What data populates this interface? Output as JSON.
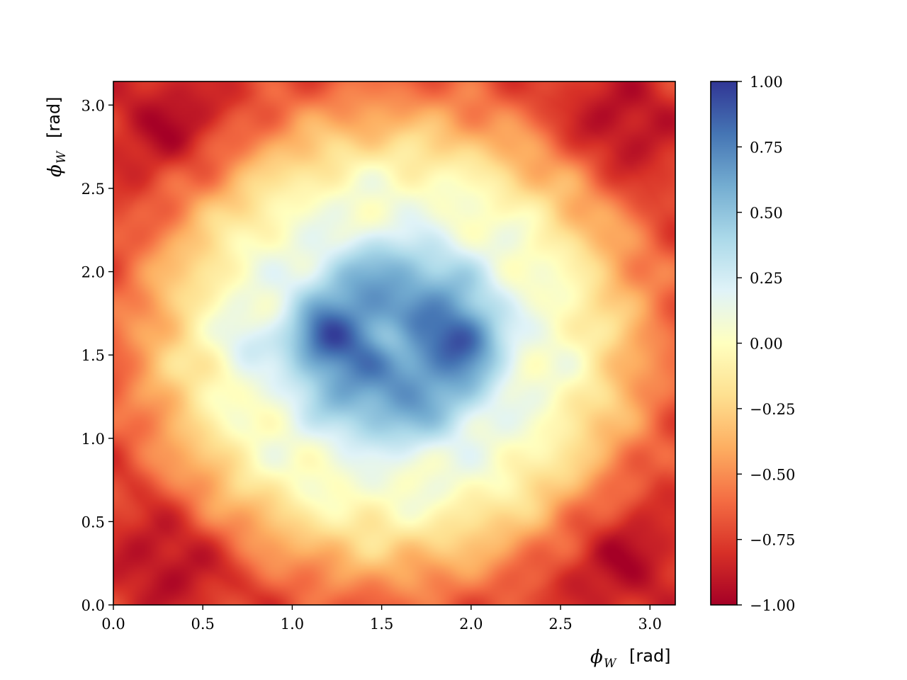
{
  "chart_data": {
    "type": "heatmap",
    "title": "",
    "xlabel": {
      "symbol": "ϕ",
      "subscript": "W",
      "unit": "[rad]"
    },
    "ylabel": {
      "symbol": "ϕ",
      "subscript": "W",
      "unit": "[rad]"
    },
    "xlim": [
      0,
      3.1416
    ],
    "ylim": [
      0,
      3.1416
    ],
    "x_ticks": [
      "0.0",
      "0.5",
      "1.0",
      "1.5",
      "2.0",
      "2.5",
      "3.0"
    ],
    "y_ticks": [
      "0.0",
      "0.5",
      "1.0",
      "1.5",
      "2.0",
      "2.5",
      "3.0"
    ],
    "colorbar": {
      "colormap": "RdYlBu",
      "range": [
        -1.0,
        1.0
      ],
      "ticks": [
        "1.00",
        "0.75",
        "0.50",
        "0.25",
        "0.00",
        "−0.25",
        "−0.50",
        "−0.75",
        "−1.00"
      ],
      "tick_values": [
        1.0,
        0.75,
        0.5,
        0.25,
        0.0,
        -0.25,
        -0.5,
        -0.75,
        -1.0
      ]
    },
    "features": [
      {
        "x": 1.57,
        "y": 1.57,
        "value": 0.75
      },
      {
        "x": 1.2,
        "y": 1.6,
        "value": 0.95
      },
      {
        "x": 1.95,
        "y": 1.6,
        "value": 0.95
      },
      {
        "x": 1.57,
        "y": 2.0,
        "value": 0.7
      },
      {
        "x": 1.57,
        "y": 1.15,
        "value": 0.7
      },
      {
        "x": 0.3,
        "y": 2.9,
        "value": -0.75
      },
      {
        "x": 2.85,
        "y": 2.9,
        "value": -0.75
      },
      {
        "x": 0.3,
        "y": 0.25,
        "value": -0.75
      },
      {
        "x": 2.85,
        "y": 0.25,
        "value": -0.75
      },
      {
        "x": 1.57,
        "y": 0.2,
        "value": -0.15
      },
      {
        "x": 1.57,
        "y": 2.95,
        "value": -0.15
      }
    ],
    "grid": false
  }
}
